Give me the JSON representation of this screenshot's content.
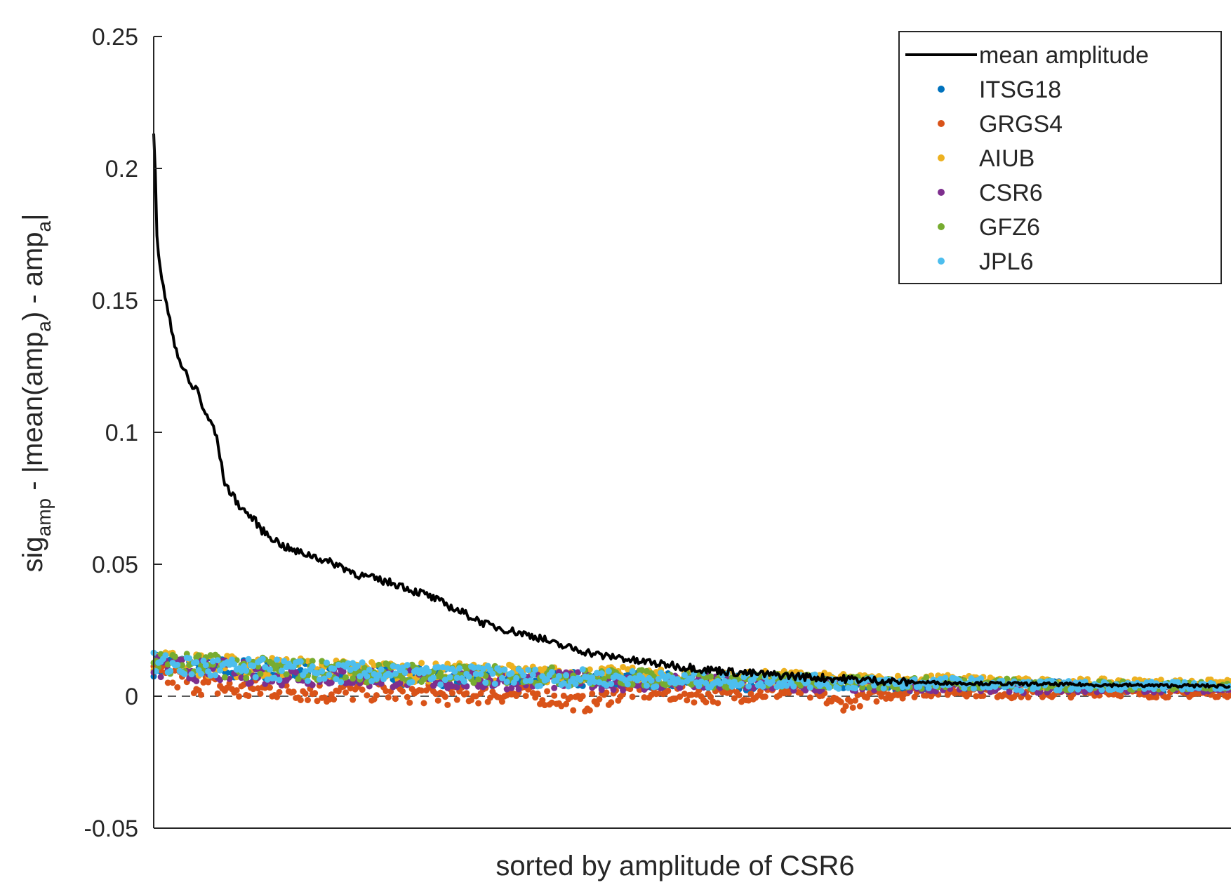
{
  "chart_data": {
    "type": "scatter",
    "title": "",
    "xlabel": "sorted by amplitude of CSR6",
    "ylabel": {
      "parts": [
        "sig",
        "amp",
        " - |mean(amp",
        "a",
        ") - amp",
        "a",
        "|"
      ]
    },
    "ylim": [
      -0.05,
      0.25
    ],
    "xlim": [
      0,
      1000
    ],
    "yticks": [
      "-0.05",
      "0",
      "0.05",
      "0.1",
      "0.15",
      "0.2",
      "0.25"
    ],
    "ytick_values": [
      -0.05,
      0,
      0.05,
      0.1,
      0.15,
      0.2,
      0.25
    ],
    "xticks": [],
    "grid": false,
    "zero_line": {
      "y": 0,
      "style": "dashed"
    },
    "legend": {
      "placement": "top-right",
      "boxed": true
    },
    "line_series": {
      "name": "mean amplitude",
      "color": "#000000",
      "x": [
        0,
        1,
        2,
        3,
        5,
        8,
        12,
        16,
        20,
        25,
        30,
        35,
        40,
        45,
        50,
        55,
        60,
        65,
        70,
        75,
        80,
        85,
        90,
        95,
        100,
        110,
        120,
        130,
        140,
        150,
        160,
        170,
        180,
        190,
        200,
        210,
        220,
        230,
        240,
        250,
        260,
        270,
        280,
        290,
        300,
        310,
        320,
        330,
        340,
        350,
        360,
        370,
        380,
        390,
        400,
        410,
        420,
        430,
        440,
        450,
        460,
        470,
        480,
        490,
        500,
        510,
        520,
        530,
        540,
        550,
        560,
        570,
        580,
        590,
        600,
        610,
        620,
        630,
        640,
        650,
        660,
        670,
        680,
        690,
        700,
        720,
        740,
        760,
        780,
        800,
        820,
        840,
        860,
        880,
        900,
        920,
        940,
        960,
        980,
        1000
      ],
      "y": [
        0.212,
        0.205,
        0.19,
        0.175,
        0.166,
        0.157,
        0.148,
        0.14,
        0.133,
        0.126,
        0.122,
        0.117,
        0.117,
        0.11,
        0.105,
        0.103,
        0.095,
        0.082,
        0.078,
        0.075,
        0.072,
        0.07,
        0.068,
        0.066,
        0.063,
        0.06,
        0.057,
        0.055,
        0.054,
        0.053,
        0.051,
        0.05,
        0.048,
        0.046,
        0.045,
        0.044,
        0.043,
        0.042,
        0.04,
        0.039,
        0.037,
        0.035,
        0.033,
        0.031,
        0.029,
        0.027,
        0.026,
        0.025,
        0.024,
        0.023,
        0.022,
        0.02,
        0.019,
        0.018,
        0.017,
        0.016,
        0.015,
        0.015,
        0.014,
        0.013,
        0.013,
        0.012,
        0.012,
        0.011,
        0.011,
        0.01,
        0.01,
        0.0095,
        0.009,
        0.0088,
        0.0085,
        0.0082,
        0.008,
        0.0078,
        0.0075,
        0.0072,
        0.007,
        0.0068,
        0.0066,
        0.0064,
        0.0062,
        0.006,
        0.0058,
        0.0056,
        0.0054,
        0.0052,
        0.005,
        0.0049,
        0.0048,
        0.0047,
        0.0046,
        0.0045,
        0.0044,
        0.0043,
        0.0042,
        0.0041,
        0.004,
        0.004,
        0.0039,
        0.0038
      ]
    },
    "series": [
      {
        "name": "ITSG18",
        "color": "#0072BD",
        "x": [
          0,
          40,
          80,
          120,
          160,
          200,
          240,
          280,
          320,
          360,
          400,
          440,
          480,
          520,
          560,
          600,
          640,
          680,
          720,
          760,
          800,
          840,
          880,
          920,
          960,
          1000
        ],
        "y": [
          0.012,
          0.011,
          0.01,
          0.009,
          0.009,
          0.008,
          0.008,
          0.007,
          0.007,
          0.007,
          0.006,
          0.006,
          0.006,
          0.005,
          0.005,
          0.005,
          0.005,
          0.004,
          0.004,
          0.004,
          0.004,
          0.004,
          0.003,
          0.003,
          0.003,
          0.003
        ]
      },
      {
        "name": "GRGS4",
        "color": "#D95319",
        "x": [
          0,
          40,
          80,
          120,
          160,
          200,
          240,
          280,
          320,
          360,
          400,
          440,
          480,
          520,
          560,
          600,
          640,
          680,
          720,
          760,
          800,
          840,
          880,
          920,
          960,
          1000
        ],
        "y": [
          0.008,
          0.005,
          0.002,
          0.003,
          0.001,
          0.002,
          0.001,
          0.0,
          0.001,
          0.0,
          -0.003,
          0.002,
          0.001,
          0.0,
          0.001,
          0.002,
          -0.003,
          0.001,
          0.002,
          0.002,
          0.001,
          0.001,
          0.002,
          0.001,
          0.001,
          0.001
        ]
      },
      {
        "name": "AIUB",
        "color": "#EDB120",
        "x": [
          0,
          40,
          80,
          120,
          160,
          200,
          240,
          280,
          320,
          360,
          400,
          440,
          480,
          520,
          560,
          600,
          640,
          680,
          720,
          760,
          800,
          840,
          880,
          920,
          960,
          1000
        ],
        "y": [
          0.014,
          0.012,
          0.011,
          0.011,
          0.01,
          0.01,
          0.009,
          0.009,
          0.009,
          0.008,
          0.008,
          0.008,
          0.007,
          0.007,
          0.007,
          0.007,
          0.006,
          0.006,
          0.006,
          0.006,
          0.005,
          0.005,
          0.005,
          0.005,
          0.005,
          0.005
        ]
      },
      {
        "name": "CSR6",
        "color": "#7E2F8E",
        "x": [
          0,
          40,
          80,
          120,
          160,
          200,
          240,
          280,
          320,
          360,
          400,
          440,
          480,
          520,
          560,
          600,
          640,
          680,
          720,
          760,
          800,
          840,
          880,
          920,
          960,
          1000
        ],
        "y": [
          0.011,
          0.01,
          0.009,
          0.008,
          0.008,
          0.007,
          0.007,
          0.006,
          0.006,
          0.006,
          0.006,
          0.005,
          0.005,
          0.005,
          0.005,
          0.004,
          0.004,
          0.004,
          0.004,
          0.004,
          0.003,
          0.003,
          0.003,
          0.003,
          0.003,
          0.003
        ]
      },
      {
        "name": "GFZ6",
        "color": "#77AC30",
        "x": [
          0,
          40,
          80,
          120,
          160,
          200,
          240,
          280,
          320,
          360,
          400,
          440,
          480,
          520,
          560,
          600,
          640,
          680,
          720,
          760,
          800,
          840,
          880,
          920,
          960,
          1000
        ],
        "y": [
          0.013,
          0.012,
          0.011,
          0.01,
          0.01,
          0.009,
          0.009,
          0.008,
          0.008,
          0.008,
          0.007,
          0.007,
          0.007,
          0.006,
          0.006,
          0.006,
          0.005,
          0.005,
          0.005,
          0.005,
          0.005,
          0.004,
          0.004,
          0.004,
          0.004,
          0.004
        ]
      },
      {
        "name": "JPL6",
        "color": "#4DBEEE",
        "x": [
          0,
          40,
          80,
          120,
          160,
          200,
          240,
          280,
          320,
          360,
          400,
          440,
          480,
          520,
          560,
          600,
          640,
          680,
          720,
          760,
          800,
          840,
          880,
          920,
          960,
          1000
        ],
        "y": [
          0.012,
          0.011,
          0.01,
          0.01,
          0.009,
          0.009,
          0.008,
          0.008,
          0.008,
          0.007,
          0.007,
          0.007,
          0.006,
          0.006,
          0.006,
          0.006,
          0.005,
          0.005,
          0.005,
          0.005,
          0.004,
          0.004,
          0.004,
          0.004,
          0.004,
          0.004
        ]
      }
    ]
  }
}
